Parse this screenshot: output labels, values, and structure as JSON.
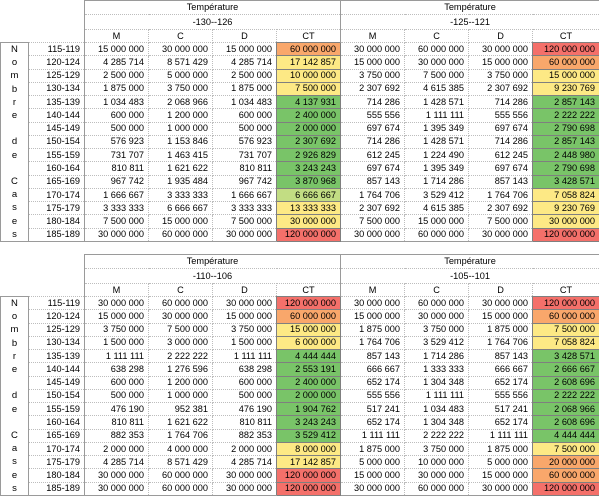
{
  "side_label_letters": [
    "N",
    "o",
    "m",
    "b",
    "r",
    "e",
    "",
    "d",
    "e",
    "",
    "C",
    "a",
    "s",
    "e",
    "s"
  ],
  "temperature_label": "Température",
  "column_headers": [
    "M",
    "C",
    "D",
    "CT"
  ],
  "row_ranges": [
    "115-119",
    "120-124",
    "125-129",
    "130-134",
    "135-139",
    "140-144",
    "145-149",
    "150-154",
    "155-159",
    "160-164",
    "165-169",
    "170-174",
    "175-179",
    "180-184",
    "185-189"
  ],
  "ct_colors": {
    "red": "#f4706a",
    "orange": "#f9a76b",
    "yellow": "#fde985",
    "lightgreen": "#c2dd83",
    "green": "#79c468"
  },
  "tables": [
    {
      "groups": [
        {
          "range": "-130--126",
          "rows": [
            {
              "m": "15 000 000",
              "c": "30 000 000",
              "d": "15 000 000",
              "ct": "60 000 000",
              "color": "orange"
            },
            {
              "m": "4 285 714",
              "c": "8 571 429",
              "d": "4 285 714",
              "ct": "17 142 857",
              "color": "yellow"
            },
            {
              "m": "2 500 000",
              "c": "5 000 000",
              "d": "2 500 000",
              "ct": "10 000 000",
              "color": "yellow"
            },
            {
              "m": "1 875 000",
              "c": "3 750 000",
              "d": "1 875 000",
              "ct": "7 500 000",
              "color": "yellow"
            },
            {
              "m": "1 034 483",
              "c": "2 068 966",
              "d": "1 034 483",
              "ct": "4 137 931",
              "color": "green"
            },
            {
              "m": "600 000",
              "c": "1 200 000",
              "d": "600 000",
              "ct": "2 400 000",
              "color": "green"
            },
            {
              "m": "500 000",
              "c": "1 000 000",
              "d": "500 000",
              "ct": "2 000 000",
              "color": "green"
            },
            {
              "m": "576 923",
              "c": "1 153 846",
              "d": "576 923",
              "ct": "2 307 692",
              "color": "green"
            },
            {
              "m": "731 707",
              "c": "1 463 415",
              "d": "731 707",
              "ct": "2 926 829",
              "color": "green"
            },
            {
              "m": "810 811",
              "c": "1 621 622",
              "d": "810 811",
              "ct": "3 243 243",
              "color": "green"
            },
            {
              "m": "967 742",
              "c": "1 935 484",
              "d": "967 742",
              "ct": "3 870 968",
              "color": "green"
            },
            {
              "m": "1 666 667",
              "c": "3 333 333",
              "d": "1 666 667",
              "ct": "6 666 667",
              "color": "lightgreen"
            },
            {
              "m": "3 333 333",
              "c": "6 666 667",
              "d": "3 333 333",
              "ct": "13 333 333",
              "color": "yellow"
            },
            {
              "m": "7 500 000",
              "c": "15 000 000",
              "d": "7 500 000",
              "ct": "30 000 000",
              "color": "yellow"
            },
            {
              "m": "30 000 000",
              "c": "60 000 000",
              "d": "30 000 000",
              "ct": "120 000 000",
              "color": "red"
            }
          ]
        },
        {
          "range": "-125--121",
          "rows": [
            {
              "m": "30 000 000",
              "c": "60 000 000",
              "d": "30 000 000",
              "ct": "120 000 000",
              "color": "red"
            },
            {
              "m": "15 000 000",
              "c": "30 000 000",
              "d": "15 000 000",
              "ct": "60 000 000",
              "color": "orange"
            },
            {
              "m": "3 750 000",
              "c": "7 500 000",
              "d": "3 750 000",
              "ct": "15 000 000",
              "color": "yellow"
            },
            {
              "m": "2 307 692",
              "c": "4 615 385",
              "d": "2 307 692",
              "ct": "9 230 769",
              "color": "yellow"
            },
            {
              "m": "714 286",
              "c": "1 428 571",
              "d": "714 286",
              "ct": "2 857 143",
              "color": "green"
            },
            {
              "m": "555 556",
              "c": "1 111 111",
              "d": "555 556",
              "ct": "2 222 222",
              "color": "green"
            },
            {
              "m": "697 674",
              "c": "1 395 349",
              "d": "697 674",
              "ct": "2 790 698",
              "color": "green"
            },
            {
              "m": "714 286",
              "c": "1 428 571",
              "d": "714 286",
              "ct": "2 857 143",
              "color": "green"
            },
            {
              "m": "612 245",
              "c": "1 224 490",
              "d": "612 245",
              "ct": "2 448 980",
              "color": "green"
            },
            {
              "m": "697 674",
              "c": "1 395 349",
              "d": "697 674",
              "ct": "2 790 698",
              "color": "green"
            },
            {
              "m": "857 143",
              "c": "1 714 286",
              "d": "857 143",
              "ct": "3 428 571",
              "color": "green"
            },
            {
              "m": "1 764 706",
              "c": "3 529 412",
              "d": "1 764 706",
              "ct": "7 058 824",
              "color": "yellow"
            },
            {
              "m": "2 307 692",
              "c": "4 615 385",
              "d": "2 307 692",
              "ct": "9 230 769",
              "color": "yellow"
            },
            {
              "m": "7 500 000",
              "c": "15 000 000",
              "d": "7 500 000",
              "ct": "30 000 000",
              "color": "yellow"
            },
            {
              "m": "30 000 000",
              "c": "60 000 000",
              "d": "30 000 000",
              "ct": "120 000 000",
              "color": "red"
            }
          ]
        }
      ]
    },
    {
      "groups": [
        {
          "range": "-110--106",
          "rows": [
            {
              "m": "30 000 000",
              "c": "60 000 000",
              "d": "30 000 000",
              "ct": "120 000 000",
              "color": "red"
            },
            {
              "m": "15 000 000",
              "c": "30 000 000",
              "d": "15 000 000",
              "ct": "60 000 000",
              "color": "orange"
            },
            {
              "m": "3 750 000",
              "c": "7 500 000",
              "d": "3 750 000",
              "ct": "15 000 000",
              "color": "yellow"
            },
            {
              "m": "1 500 000",
              "c": "3 000 000",
              "d": "1 500 000",
              "ct": "6 000 000",
              "color": "yellow"
            },
            {
              "m": "1 111 111",
              "c": "2 222 222",
              "d": "1 111 111",
              "ct": "4 444 444",
              "color": "green"
            },
            {
              "m": "638 298",
              "c": "1 276 596",
              "d": "638 298",
              "ct": "2 553 191",
              "color": "green"
            },
            {
              "m": "600 000",
              "c": "1 200 000",
              "d": "600 000",
              "ct": "2 400 000",
              "color": "green"
            },
            {
              "m": "500 000",
              "c": "1 000 000",
              "d": "500 000",
              "ct": "2 000 000",
              "color": "green"
            },
            {
              "m": "476 190",
              "c": "952 381",
              "d": "476 190",
              "ct": "1 904 762",
              "color": "green"
            },
            {
              "m": "810 811",
              "c": "1 621 622",
              "d": "810 811",
              "ct": "3 243 243",
              "color": "green"
            },
            {
              "m": "882 353",
              "c": "1 764 706",
              "d": "882 353",
              "ct": "3 529 412",
              "color": "green"
            },
            {
              "m": "2 000 000",
              "c": "4 000 000",
              "d": "2 000 000",
              "ct": "8 000 000",
              "color": "yellow"
            },
            {
              "m": "4 285 714",
              "c": "8 571 429",
              "d": "4 285 714",
              "ct": "17 142 857",
              "color": "yellow"
            },
            {
              "m": "30 000 000",
              "c": "60 000 000",
              "d": "30 000 000",
              "ct": "120 000 000",
              "color": "red"
            },
            {
              "m": "30 000 000",
              "c": "60 000 000",
              "d": "30 000 000",
              "ct": "120 000 000",
              "color": "red"
            }
          ]
        },
        {
          "range": "-105--101",
          "rows": [
            {
              "m": "30 000 000",
              "c": "60 000 000",
              "d": "30 000 000",
              "ct": "120 000 000",
              "color": "red"
            },
            {
              "m": "15 000 000",
              "c": "30 000 000",
              "d": "15 000 000",
              "ct": "60 000 000",
              "color": "orange"
            },
            {
              "m": "1 875 000",
              "c": "3 750 000",
              "d": "1 875 000",
              "ct": "7 500 000",
              "color": "yellow"
            },
            {
              "m": "1 764 706",
              "c": "3 529 412",
              "d": "1 764 706",
              "ct": "7 058 824",
              "color": "yellow"
            },
            {
              "m": "857 143",
              "c": "1 714 286",
              "d": "857 143",
              "ct": "3 428 571",
              "color": "green"
            },
            {
              "m": "666 667",
              "c": "1 333 333",
              "d": "666 667",
              "ct": "2 666 667",
              "color": "green"
            },
            {
              "m": "652 174",
              "c": "1 304 348",
              "d": "652 174",
              "ct": "2 608 696",
              "color": "green"
            },
            {
              "m": "555 556",
              "c": "1 111 111",
              "d": "555 556",
              "ct": "2 222 222",
              "color": "green"
            },
            {
              "m": "517 241",
              "c": "1 034 483",
              "d": "517 241",
              "ct": "2 068 966",
              "color": "green"
            },
            {
              "m": "652 174",
              "c": "1 304 348",
              "d": "652 174",
              "ct": "2 608 696",
              "color": "green"
            },
            {
              "m": "1 111 111",
              "c": "2 222 222",
              "d": "1 111 111",
              "ct": "4 444 444",
              "color": "green"
            },
            {
              "m": "1 875 000",
              "c": "3 750 000",
              "d": "1 875 000",
              "ct": "7 500 000",
              "color": "yellow"
            },
            {
              "m": "5 000 000",
              "c": "10 000 000",
              "d": "5 000 000",
              "ct": "20 000 000",
              "color": "orange"
            },
            {
              "m": "15 000 000",
              "c": "30 000 000",
              "d": "15 000 000",
              "ct": "60 000 000",
              "color": "orange"
            },
            {
              "m": "30 000 000",
              "c": "60 000 000",
              "d": "30 000 000",
              "ct": "120 000 000",
              "color": "red"
            }
          ]
        }
      ]
    }
  ]
}
